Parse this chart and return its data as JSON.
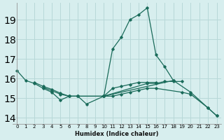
{
  "xlabel": "Humidex (Indice chaleur)",
  "bg_color": "#d7eeee",
  "grid_color": "#b8d8d8",
  "line_color": "#1a6b5a",
  "xlim": [
    -0.5,
    23.5
  ],
  "ylim": [
    13.7,
    19.85
  ],
  "yticks": [
    14,
    15,
    16,
    17,
    18,
    19
  ],
  "xticks": [
    0,
    1,
    2,
    3,
    4,
    5,
    6,
    7,
    8,
    9,
    10,
    11,
    12,
    13,
    14,
    15,
    16,
    17,
    18,
    19,
    20,
    21,
    22,
    23
  ],
  "lines": [
    {
      "x": [
        0,
        1,
        2,
        3,
        4,
        5,
        6,
        7,
        8,
        10,
        18,
        20,
        22,
        23
      ],
      "y": [
        16.4,
        15.9,
        15.75,
        15.5,
        15.3,
        14.9,
        15.1,
        15.1,
        14.7,
        15.1,
        15.9,
        15.3,
        14.5,
        14.1
      ]
    },
    {
      "x": [
        10,
        11,
        12,
        13,
        14,
        15,
        16,
        17,
        18
      ],
      "y": [
        15.1,
        17.5,
        18.1,
        19.0,
        19.25,
        19.6,
        17.2,
        16.6,
        15.9
      ]
    },
    {
      "x": [
        2,
        3,
        4,
        5,
        6,
        7,
        10,
        11,
        12,
        13,
        14,
        15,
        16
      ],
      "y": [
        15.8,
        15.6,
        15.45,
        15.25,
        15.1,
        15.1,
        15.1,
        15.5,
        15.6,
        15.7,
        15.8,
        15.8,
        15.8
      ]
    },
    {
      "x": [
        3,
        4,
        5,
        6,
        7,
        10,
        15,
        16,
        17,
        18,
        19
      ],
      "y": [
        15.55,
        15.38,
        15.2,
        15.1,
        15.1,
        15.1,
        15.75,
        15.75,
        15.85,
        15.85,
        15.85
      ]
    },
    {
      "x": [
        10,
        11,
        12,
        13,
        14,
        15,
        16,
        19,
        20,
        22,
        23
      ],
      "y": [
        15.1,
        15.1,
        15.2,
        15.3,
        15.4,
        15.5,
        15.5,
        15.3,
        15.2,
        14.5,
        14.1
      ]
    }
  ]
}
